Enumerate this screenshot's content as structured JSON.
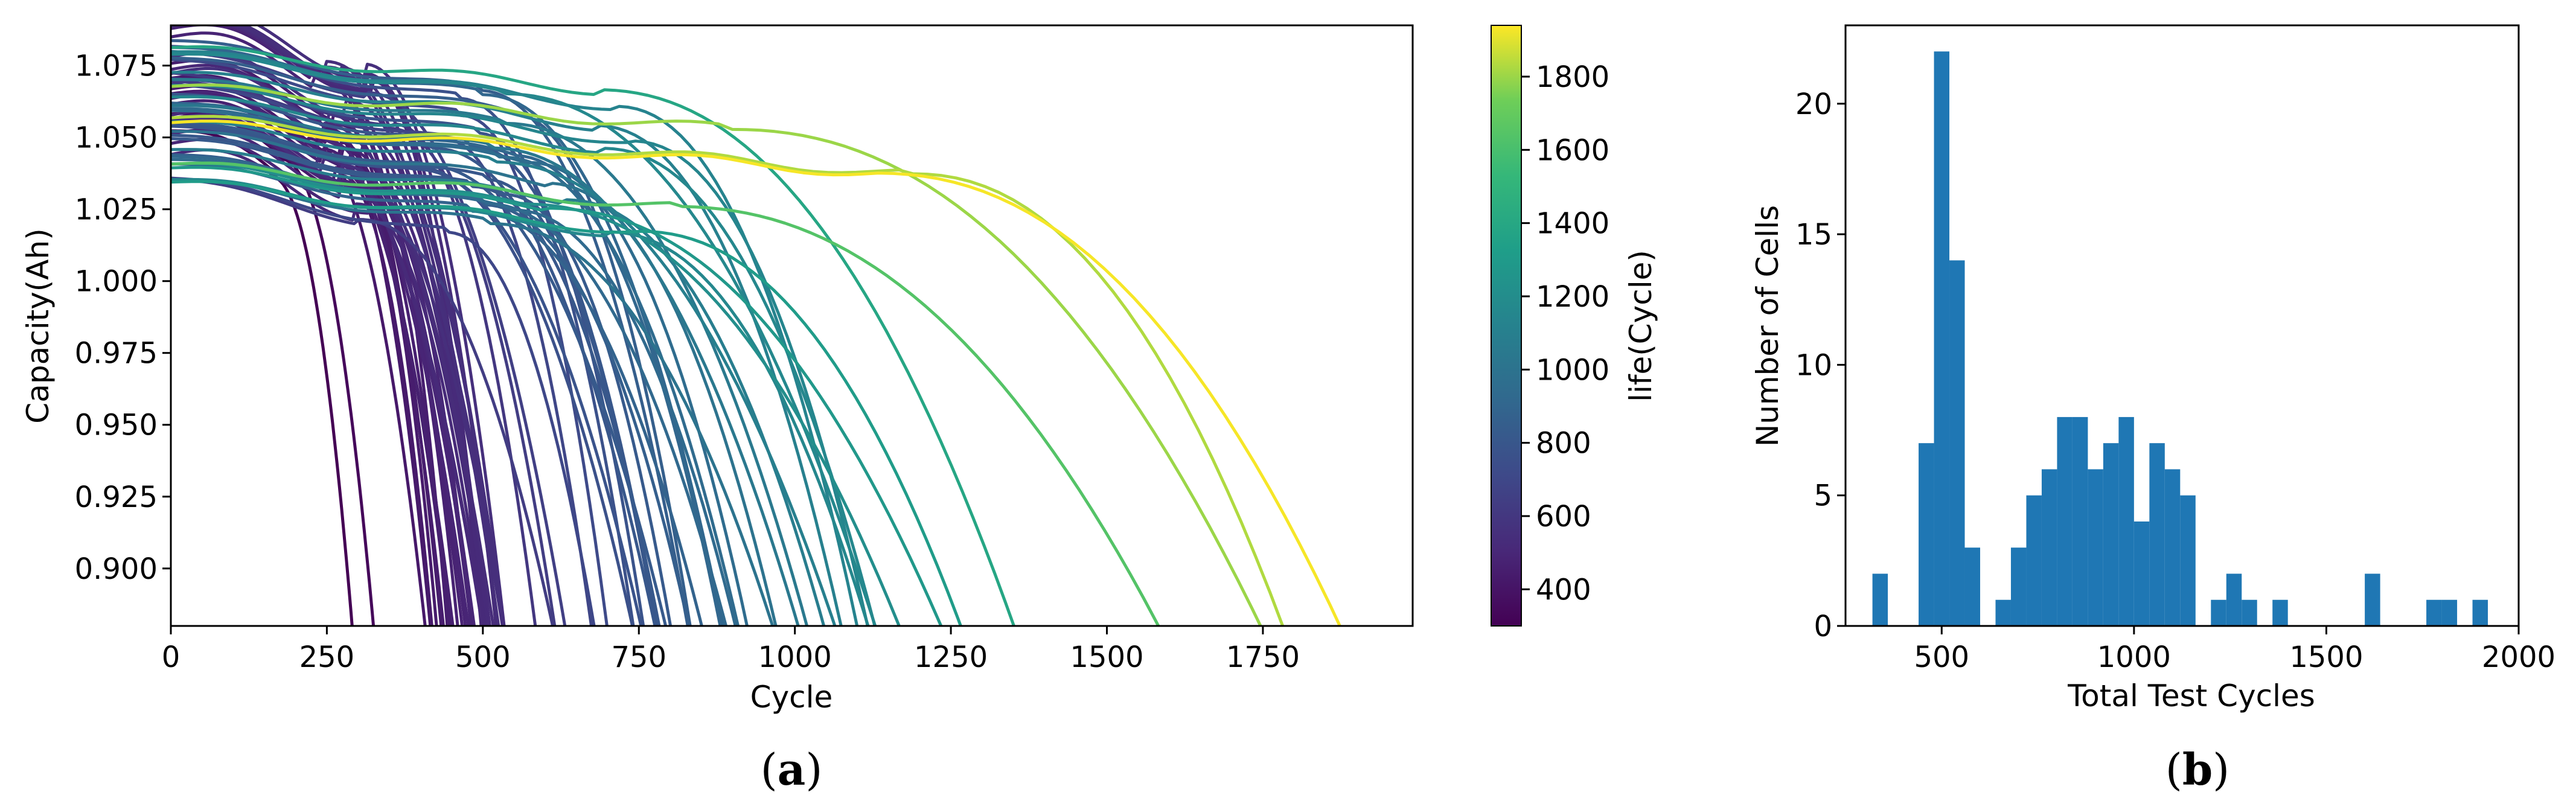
{
  "chart_data": [
    {
      "id": "a",
      "type": "line",
      "panel_label": "a",
      "xlabel": "Cycle",
      "ylabel": "Capacity(Ah)",
      "xlim": [
        0,
        1990
      ],
      "ylim": [
        0.88,
        1.089
      ],
      "xticks": [
        0,
        250,
        500,
        750,
        1000,
        1250,
        1500,
        1750
      ],
      "yticks": [
        0.9,
        0.925,
        0.95,
        0.975,
        1.0,
        1.025,
        1.05,
        1.075
      ],
      "grid": false,
      "colormap": "viridis",
      "colorbar": {
        "label": "life(Cycle)",
        "range": [
          300,
          1940
        ],
        "ticks": [
          400,
          600,
          800,
          1000,
          1200,
          1400,
          1600,
          1800
        ]
      },
      "series_note_lives": [
        300,
        335,
        430,
        445,
        460,
        480,
        500,
        520,
        540,
        600,
        650,
        700,
        760,
        800,
        850,
        880,
        920,
        950,
        1000,
        1050,
        1080,
        1100,
        1160,
        1210,
        1280,
        1310,
        1390,
        1640,
        1800,
        1830,
        1930
      ]
    },
    {
      "id": "b",
      "type": "bar",
      "panel_label": "b",
      "xlabel": "Total Test Cycles",
      "ylabel": "Number of Cells",
      "xlim": [
        250,
        2000
      ],
      "ylim": [
        0,
        23
      ],
      "xticks": [
        500,
        1000,
        1500,
        2000
      ],
      "yticks": [
        0,
        5,
        10,
        15,
        20
      ],
      "bin_width": 40,
      "bar_color": "#1f77b4",
      "bins": [
        {
          "x": 320,
          "count": 2
        },
        {
          "x": 440,
          "count": 7
        },
        {
          "x": 480,
          "count": 22
        },
        {
          "x": 520,
          "count": 14
        },
        {
          "x": 560,
          "count": 3
        },
        {
          "x": 640,
          "count": 1
        },
        {
          "x": 680,
          "count": 3
        },
        {
          "x": 720,
          "count": 5
        },
        {
          "x": 760,
          "count": 6
        },
        {
          "x": 800,
          "count": 8
        },
        {
          "x": 840,
          "count": 8
        },
        {
          "x": 880,
          "count": 6
        },
        {
          "x": 920,
          "count": 7
        },
        {
          "x": 960,
          "count": 8
        },
        {
          "x": 1000,
          "count": 4
        },
        {
          "x": 1040,
          "count": 7
        },
        {
          "x": 1080,
          "count": 6
        },
        {
          "x": 1120,
          "count": 5
        },
        {
          "x": 1200,
          "count": 1
        },
        {
          "x": 1240,
          "count": 2
        },
        {
          "x": 1280,
          "count": 1
        },
        {
          "x": 1360,
          "count": 1
        },
        {
          "x": 1600,
          "count": 2
        },
        {
          "x": 1760,
          "count": 1
        },
        {
          "x": 1800,
          "count": 1
        },
        {
          "x": 1880,
          "count": 1
        }
      ]
    }
  ]
}
